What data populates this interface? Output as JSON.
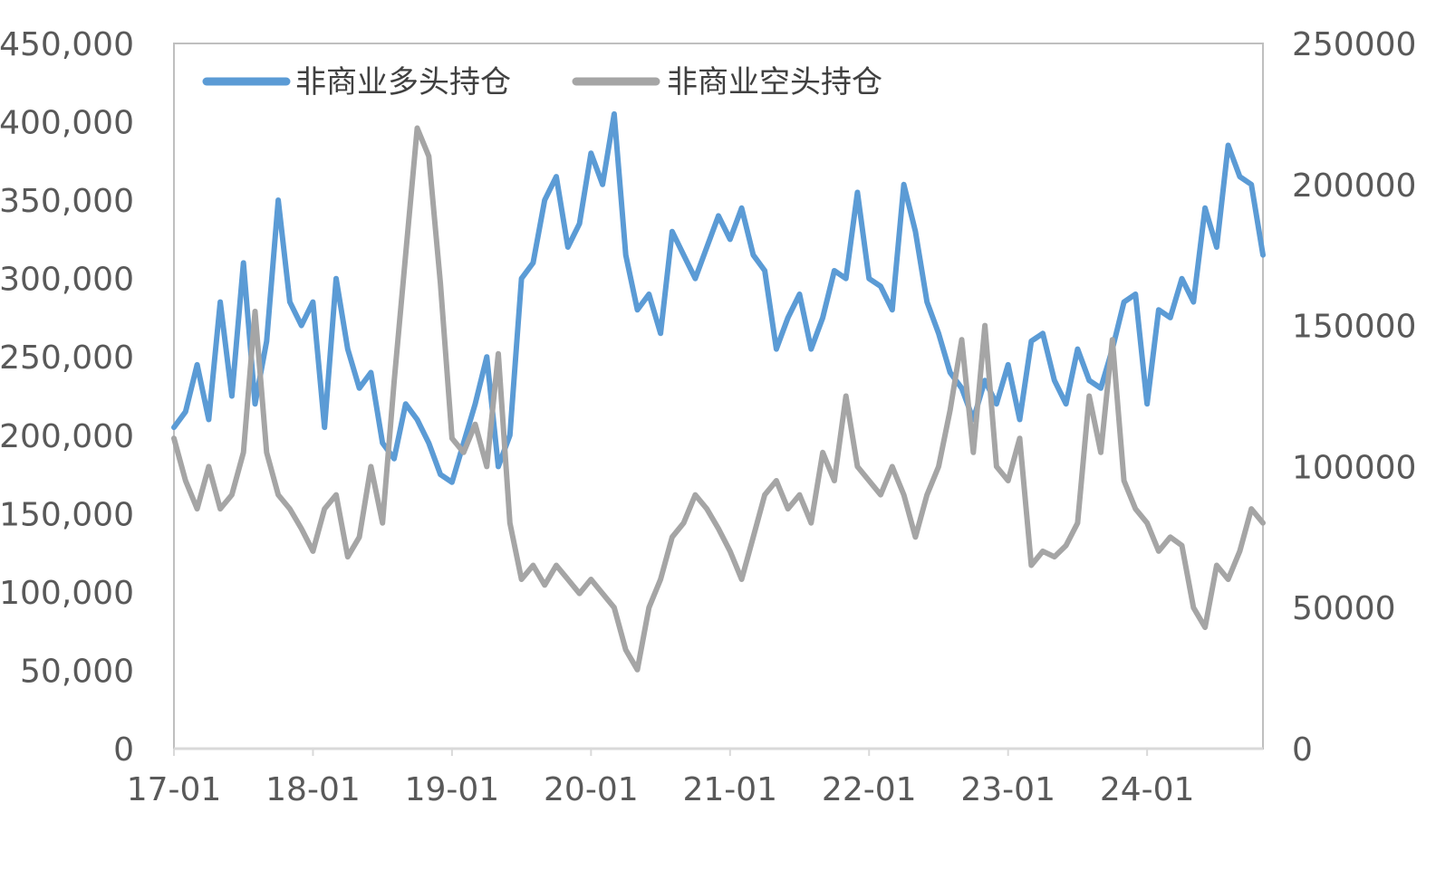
{
  "chart_data": {
    "type": "line",
    "title": "",
    "xlabel": "",
    "ylabel": "",
    "x_range": [
      "2017-01",
      "2024-11"
    ],
    "x_ticks": [
      "17-01",
      "18-01",
      "19-01",
      "20-01",
      "21-01",
      "22-01",
      "23-01",
      "24-01"
    ],
    "ylim_left": [
      0,
      450000
    ],
    "yticks_left": [
      "0",
      "50,000",
      "100,000",
      "150,000",
      "200,000",
      "250,000",
      "300,000",
      "350,000",
      "400,000",
      "450,000"
    ],
    "ylim_right": [
      0,
      250000
    ],
    "yticks_right": [
      "0",
      "50000",
      "100000",
      "150000",
      "200000",
      "250000"
    ],
    "grid": false,
    "legend_position": "top-left",
    "colors": {
      "long": "#5B9BD5",
      "short": "#A5A5A5",
      "axis": "#D9D9D9",
      "frame": "#BFBFBF"
    },
    "series": [
      {
        "name": "非商业多头持仓",
        "axis": "left",
        "points": [
          [
            "2017-01",
            205000
          ],
          [
            "2017-02",
            215000
          ],
          [
            "2017-03",
            245000
          ],
          [
            "2017-04",
            210000
          ],
          [
            "2017-05",
            285000
          ],
          [
            "2017-06",
            225000
          ],
          [
            "2017-07",
            310000
          ],
          [
            "2017-08",
            220000
          ],
          [
            "2017-09",
            260000
          ],
          [
            "2017-10",
            350000
          ],
          [
            "2017-11",
            285000
          ],
          [
            "2017-12",
            270000
          ],
          [
            "2018-01",
            285000
          ],
          [
            "2018-02",
            205000
          ],
          [
            "2018-03",
            300000
          ],
          [
            "2018-04",
            255000
          ],
          [
            "2018-05",
            230000
          ],
          [
            "2018-06",
            240000
          ],
          [
            "2018-07",
            195000
          ],
          [
            "2018-08",
            185000
          ],
          [
            "2018-09",
            220000
          ],
          [
            "2018-10",
            210000
          ],
          [
            "2018-11",
            195000
          ],
          [
            "2018-12",
            175000
          ],
          [
            "2019-01",
            170000
          ],
          [
            "2019-02",
            195000
          ],
          [
            "2019-03",
            220000
          ],
          [
            "2019-04",
            250000
          ],
          [
            "2019-05",
            180000
          ],
          [
            "2019-06",
            200000
          ],
          [
            "2019-07",
            300000
          ],
          [
            "2019-08",
            310000
          ],
          [
            "2019-09",
            350000
          ],
          [
            "2019-10",
            365000
          ],
          [
            "2019-11",
            320000
          ],
          [
            "2019-12",
            335000
          ],
          [
            "2020-01",
            380000
          ],
          [
            "2020-02",
            360000
          ],
          [
            "2020-03",
            405000
          ],
          [
            "2020-04",
            315000
          ],
          [
            "2020-05",
            280000
          ],
          [
            "2020-06",
            290000
          ],
          [
            "2020-07",
            265000
          ],
          [
            "2020-08",
            330000
          ],
          [
            "2020-09",
            315000
          ],
          [
            "2020-10",
            300000
          ],
          [
            "2020-11",
            320000
          ],
          [
            "2020-12",
            340000
          ],
          [
            "2021-01",
            325000
          ],
          [
            "2021-02",
            345000
          ],
          [
            "2021-03",
            315000
          ],
          [
            "2021-04",
            305000
          ],
          [
            "2021-05",
            255000
          ],
          [
            "2021-06",
            275000
          ],
          [
            "2021-07",
            290000
          ],
          [
            "2021-08",
            255000
          ],
          [
            "2021-09",
            275000
          ],
          [
            "2021-10",
            305000
          ],
          [
            "2021-11",
            300000
          ],
          [
            "2021-12",
            355000
          ],
          [
            "2022-01",
            300000
          ],
          [
            "2022-02",
            295000
          ],
          [
            "2022-03",
            280000
          ],
          [
            "2022-04",
            360000
          ],
          [
            "2022-05",
            330000
          ],
          [
            "2022-06",
            285000
          ],
          [
            "2022-07",
            265000
          ],
          [
            "2022-08",
            240000
          ],
          [
            "2022-09",
            230000
          ],
          [
            "2022-10",
            210000
          ],
          [
            "2022-11",
            235000
          ],
          [
            "2022-12",
            220000
          ],
          [
            "2023-01",
            245000
          ],
          [
            "2023-02",
            210000
          ],
          [
            "2023-03",
            260000
          ],
          [
            "2023-04",
            265000
          ],
          [
            "2023-05",
            235000
          ],
          [
            "2023-06",
            220000
          ],
          [
            "2023-07",
            255000
          ],
          [
            "2023-08",
            235000
          ],
          [
            "2023-09",
            230000
          ],
          [
            "2023-10",
            255000
          ],
          [
            "2023-11",
            285000
          ],
          [
            "2023-12",
            290000
          ],
          [
            "2024-01",
            220000
          ],
          [
            "2024-02",
            280000
          ],
          [
            "2024-03",
            275000
          ],
          [
            "2024-04",
            300000
          ],
          [
            "2024-05",
            285000
          ],
          [
            "2024-06",
            345000
          ],
          [
            "2024-07",
            320000
          ],
          [
            "2024-08",
            385000
          ],
          [
            "2024-09",
            365000
          ],
          [
            "2024-10",
            360000
          ],
          [
            "2024-11",
            315000
          ]
        ]
      },
      {
        "name": "非商业空头持仓",
        "axis": "right",
        "points": [
          [
            "2017-01",
            110000
          ],
          [
            "2017-02",
            95000
          ],
          [
            "2017-03",
            85000
          ],
          [
            "2017-04",
            100000
          ],
          [
            "2017-05",
            85000
          ],
          [
            "2017-06",
            90000
          ],
          [
            "2017-07",
            105000
          ],
          [
            "2017-08",
            155000
          ],
          [
            "2017-09",
            105000
          ],
          [
            "2017-10",
            90000
          ],
          [
            "2017-11",
            85000
          ],
          [
            "2017-12",
            78000
          ],
          [
            "2018-01",
            70000
          ],
          [
            "2018-02",
            85000
          ],
          [
            "2018-03",
            90000
          ],
          [
            "2018-04",
            68000
          ],
          [
            "2018-05",
            75000
          ],
          [
            "2018-06",
            100000
          ],
          [
            "2018-07",
            80000
          ],
          [
            "2018-08",
            130000
          ],
          [
            "2018-09",
            175000
          ],
          [
            "2018-10",
            220000
          ],
          [
            "2018-11",
            210000
          ],
          [
            "2018-12",
            165000
          ],
          [
            "2019-01",
            110000
          ],
          [
            "2019-02",
            105000
          ],
          [
            "2019-03",
            115000
          ],
          [
            "2019-04",
            100000
          ],
          [
            "2019-05",
            140000
          ],
          [
            "2019-06",
            80000
          ],
          [
            "2019-07",
            60000
          ],
          [
            "2019-08",
            65000
          ],
          [
            "2019-09",
            58000
          ],
          [
            "2019-10",
            65000
          ],
          [
            "2019-11",
            60000
          ],
          [
            "2019-12",
            55000
          ],
          [
            "2020-01",
            60000
          ],
          [
            "2020-02",
            55000
          ],
          [
            "2020-03",
            50000
          ],
          [
            "2020-04",
            35000
          ],
          [
            "2020-05",
            28000
          ],
          [
            "2020-06",
            50000
          ],
          [
            "2020-07",
            60000
          ],
          [
            "2020-08",
            75000
          ],
          [
            "2020-09",
            80000
          ],
          [
            "2020-10",
            90000
          ],
          [
            "2020-11",
            85000
          ],
          [
            "2020-12",
            78000
          ],
          [
            "2021-01",
            70000
          ],
          [
            "2021-02",
            60000
          ],
          [
            "2021-03",
            75000
          ],
          [
            "2021-04",
            90000
          ],
          [
            "2021-05",
            95000
          ],
          [
            "2021-06",
            85000
          ],
          [
            "2021-07",
            90000
          ],
          [
            "2021-08",
            80000
          ],
          [
            "2021-09",
            105000
          ],
          [
            "2021-10",
            95000
          ],
          [
            "2021-11",
            125000
          ],
          [
            "2021-12",
            100000
          ],
          [
            "2022-01",
            95000
          ],
          [
            "2022-02",
            90000
          ],
          [
            "2022-03",
            100000
          ],
          [
            "2022-04",
            90000
          ],
          [
            "2022-05",
            75000
          ],
          [
            "2022-06",
            90000
          ],
          [
            "2022-07",
            100000
          ],
          [
            "2022-08",
            120000
          ],
          [
            "2022-09",
            145000
          ],
          [
            "2022-10",
            105000
          ],
          [
            "2022-11",
            150000
          ],
          [
            "2022-12",
            100000
          ],
          [
            "2023-01",
            95000
          ],
          [
            "2023-02",
            110000
          ],
          [
            "2023-03",
            65000
          ],
          [
            "2023-04",
            70000
          ],
          [
            "2023-05",
            68000
          ],
          [
            "2023-06",
            72000
          ],
          [
            "2023-07",
            80000
          ],
          [
            "2023-08",
            125000
          ],
          [
            "2023-09",
            105000
          ],
          [
            "2023-10",
            145000
          ],
          [
            "2023-11",
            95000
          ],
          [
            "2023-12",
            85000
          ],
          [
            "2024-01",
            80000
          ],
          [
            "2024-02",
            70000
          ],
          [
            "2024-03",
            75000
          ],
          [
            "2024-04",
            72000
          ],
          [
            "2024-05",
            50000
          ],
          [
            "2024-06",
            43000
          ],
          [
            "2024-07",
            65000
          ],
          [
            "2024-08",
            60000
          ],
          [
            "2024-09",
            70000
          ],
          [
            "2024-10",
            85000
          ],
          [
            "2024-11",
            80000
          ]
        ]
      }
    ]
  }
}
